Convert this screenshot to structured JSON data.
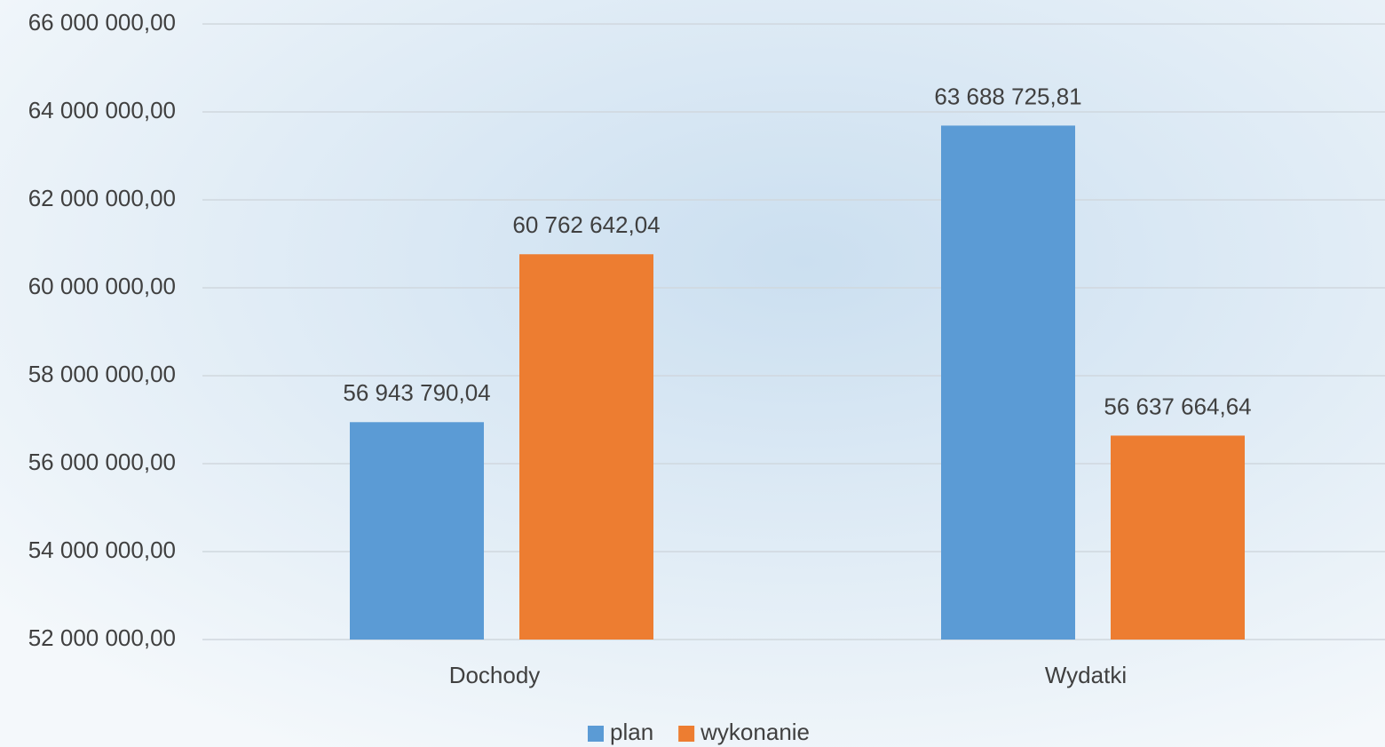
{
  "chart_data": {
    "type": "bar",
    "categories": [
      "Dochody",
      "Wydatki"
    ],
    "series": [
      {
        "name": "plan",
        "color": "#5b9bd5",
        "values": [
          56943790.04,
          63688725.81
        ],
        "value_labels": [
          "56 943 790,04",
          "63 688 725,81"
        ]
      },
      {
        "name": "wykonanie",
        "color": "#ed7d31",
        "values": [
          60762642.04,
          56637664.64
        ],
        "value_labels": [
          "60 762 642,04",
          "56 637 664,64"
        ]
      }
    ],
    "ylim": [
      52000000,
      66000000
    ],
    "yticks": [
      {
        "value": 52000000,
        "label": "52 000 000,00"
      },
      {
        "value": 54000000,
        "label": "54 000 000,00"
      },
      {
        "value": 56000000,
        "label": "56 000 000,00"
      },
      {
        "value": 58000000,
        "label": "58 000 000,00"
      },
      {
        "value": 60000000,
        "label": "60 000 000,00"
      },
      {
        "value": 62000000,
        "label": "62 000 000,00"
      },
      {
        "value": 64000000,
        "label": "64 000 000,00"
      },
      {
        "value": 66000000,
        "label": "66 000 000,00"
      }
    ],
    "grid": true,
    "legend": "bottom"
  }
}
